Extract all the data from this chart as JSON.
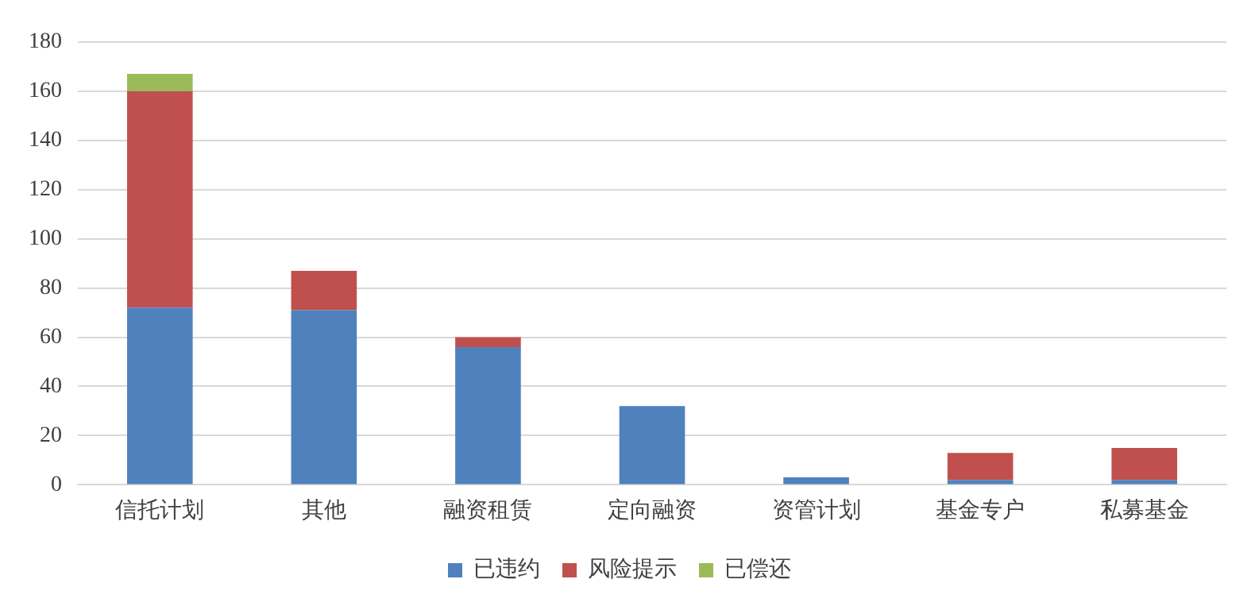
{
  "chart_data": {
    "type": "bar",
    "stacked": true,
    "categories": [
      "信托计划",
      "其他",
      "融资租赁",
      "定向融资",
      "资管计划",
      "基金专户",
      "私募基金"
    ],
    "series": [
      {
        "name": "已违约",
        "color": "#4f81bd",
        "values": [
          72,
          71,
          56,
          32,
          3,
          2,
          2
        ]
      },
      {
        "name": "风险提示",
        "color": "#c0504d",
        "values": [
          88,
          16,
          4,
          0,
          0,
          11,
          13
        ]
      },
      {
        "name": "已偿还",
        "color": "#9bbb59",
        "values": [
          7,
          0,
          0,
          0,
          0,
          0,
          0
        ]
      }
    ],
    "ylim": [
      0,
      180
    ],
    "yticks": [
      0,
      20,
      40,
      60,
      80,
      100,
      120,
      140,
      160,
      180
    ],
    "grid": "y",
    "legend": "bottom"
  }
}
